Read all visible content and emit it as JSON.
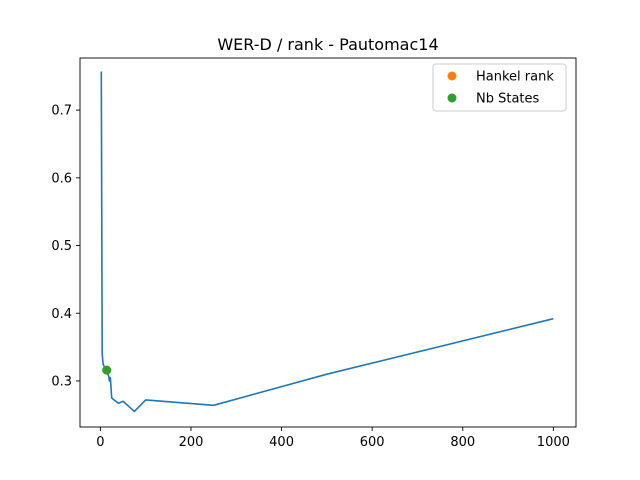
{
  "chart_data": {
    "type": "line",
    "title": "WER-D / rank - Pautomac14",
    "xlabel": "",
    "ylabel": "",
    "xlim": [
      -45,
      1050
    ],
    "ylim": [
      0.232,
      0.777
    ],
    "xticks": [
      0,
      200,
      400,
      600,
      800,
      1000
    ],
    "yticks": [
      0.3,
      0.4,
      0.5,
      0.6,
      0.7
    ],
    "ytick_labels": [
      "0.3",
      "0.4",
      "0.5",
      "0.6",
      "0.7"
    ],
    "grid": false,
    "legend_location": "top-right",
    "series": [
      {
        "color": "#1f77b4",
        "x": [
          2,
          4,
          6,
          8,
          10,
          12,
          14,
          16,
          18,
          20,
          22,
          25,
          30,
          40,
          50,
          75,
          100,
          250,
          500,
          1000
        ],
        "y": [
          0.757,
          0.34,
          0.325,
          0.322,
          0.32,
          0.318,
          0.315,
          0.31,
          0.308,
          0.3,
          0.305,
          0.275,
          0.272,
          0.267,
          0.27,
          0.255,
          0.272,
          0.264,
          0.31,
          0.392
        ]
      }
    ],
    "markers": [
      {
        "name": "Hankel rank",
        "color": "#ff7f0e",
        "x": 14,
        "y": 0.316
      },
      {
        "name": "Nb States",
        "color": "#2ca02c",
        "x": 14,
        "y": 0.316
      }
    ]
  }
}
